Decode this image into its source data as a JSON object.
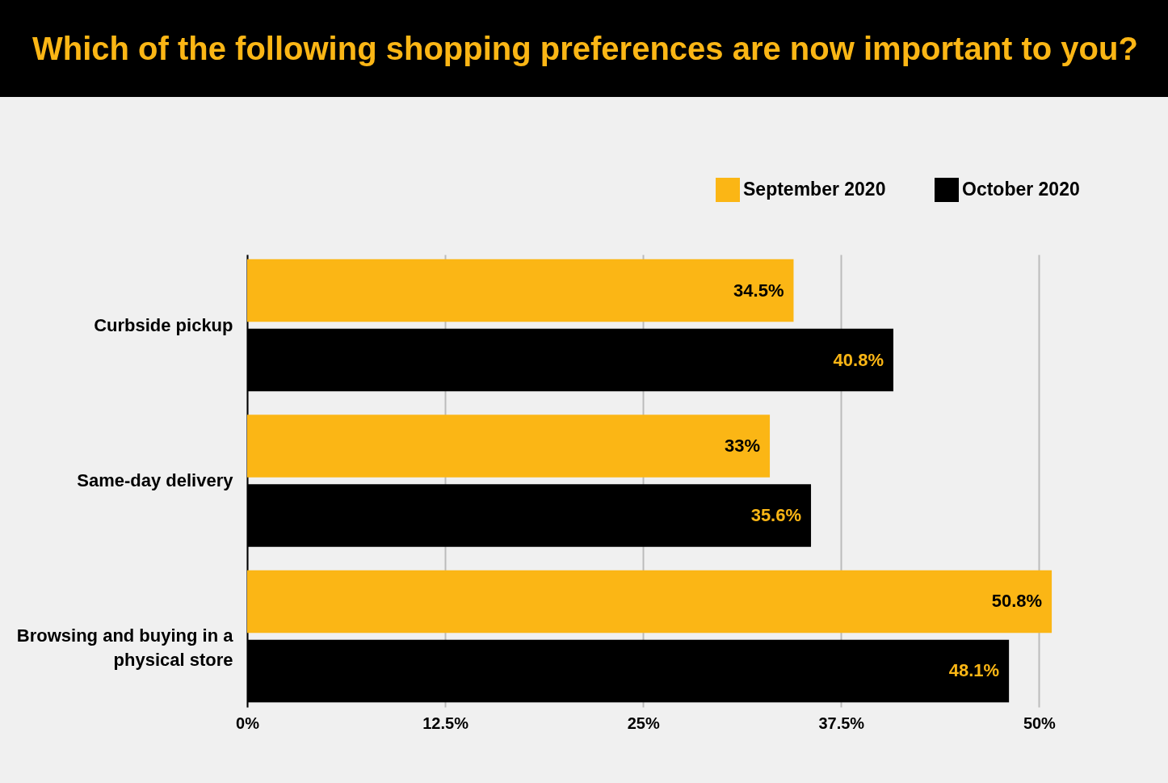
{
  "chart_data": {
    "type": "bar",
    "orientation": "horizontal",
    "title": "Which of the following shopping preferences are now important to you?",
    "categories": [
      "Curbside pickup",
      "Same-day delivery",
      "Browsing and buying in a physical store"
    ],
    "series": [
      {
        "name": "September 2020",
        "color": "#fbb615",
        "values": [
          34.5,
          33,
          50.8
        ],
        "value_labels": [
          "34.5%",
          "33%",
          "50.8%"
        ]
      },
      {
        "name": "October 2020",
        "color": "#000000",
        "values": [
          40.8,
          35.6,
          48.1
        ],
        "value_labels": [
          "40.8%",
          "35.6%",
          "48.1%"
        ]
      }
    ],
    "xlim": [
      0,
      51
    ],
    "xticks": [
      {
        "value": 0,
        "label": "0%"
      },
      {
        "value": 12.5,
        "label": "12.5%"
      },
      {
        "value": 25,
        "label": "25%"
      },
      {
        "value": 37.5,
        "label": "37.5%"
      },
      {
        "value": 50,
        "label": "50%"
      }
    ],
    "grid": "x",
    "legend": "top right"
  }
}
